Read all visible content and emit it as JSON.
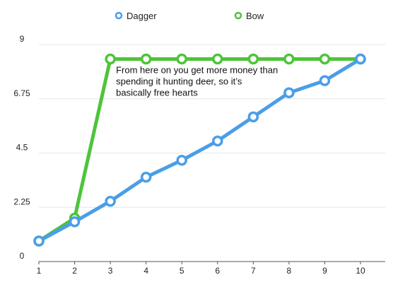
{
  "chart_data": {
    "type": "line",
    "x": [
      1,
      2,
      3,
      4,
      5,
      6,
      7,
      8,
      9,
      10
    ],
    "series": [
      {
        "name": "Dagger",
        "color": "#4a9ee8",
        "values": [
          0.85,
          1.65,
          2.5,
          3.5,
          4.2,
          5.0,
          6.0,
          7.0,
          7.5,
          8.4
        ]
      },
      {
        "name": "Bow",
        "color": "#4ec43a",
        "values": [
          0.85,
          1.8,
          8.4,
          8.4,
          8.4,
          8.4,
          8.4,
          8.4,
          8.4,
          8.4
        ]
      }
    ],
    "yticks": [
      "0",
      "2.25",
      "4.5",
      "6.75",
      "9"
    ],
    "xticks": [
      "1",
      "2",
      "3",
      "4",
      "5",
      "6",
      "7",
      "8",
      "9",
      "10"
    ],
    "ylim": [
      0,
      9
    ],
    "grid": true,
    "legend_position": "top-center",
    "annotation": {
      "lines": [
        "From here on you get more money than",
        "spending it hunting deer, so it’s",
        "basically free hearts"
      ],
      "at_x": 3,
      "at_y": 8.4
    },
    "title": "",
    "xlabel": "",
    "ylabel": ""
  }
}
